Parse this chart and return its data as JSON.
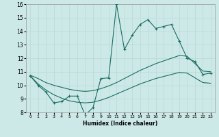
{
  "xlabel": "Humidex (Indice chaleur)",
  "xlim": [
    -0.5,
    23.5
  ],
  "ylim": [
    8,
    16
  ],
  "xticks": [
    0,
    1,
    2,
    3,
    4,
    5,
    6,
    7,
    8,
    9,
    10,
    11,
    12,
    13,
    14,
    15,
    16,
    17,
    18,
    19,
    20,
    21,
    22,
    23
  ],
  "yticks": [
    8,
    9,
    10,
    11,
    12,
    13,
    14,
    15,
    16
  ],
  "bg_color": "#cce9e7",
  "line_color": "#1a6b62",
  "grid_color": "#b8d8d5",
  "line1_x": [
    0,
    1,
    2,
    3,
    4,
    5,
    6,
    7,
    8,
    9,
    10,
    11,
    12,
    13,
    14,
    15,
    16,
    17,
    18,
    19,
    20,
    21,
    22,
    23
  ],
  "line1_y": [
    10.7,
    10.0,
    9.5,
    8.7,
    8.8,
    9.2,
    9.2,
    7.8,
    8.35,
    10.5,
    10.55,
    16.0,
    12.65,
    13.7,
    14.5,
    14.85,
    14.2,
    14.35,
    14.5,
    13.25,
    12.0,
    11.75,
    10.8,
    10.9
  ],
  "line2_x": [
    0,
    1,
    2,
    3,
    4,
    5,
    6,
    7,
    8,
    9,
    10,
    11,
    12,
    13,
    14,
    15,
    16,
    17,
    18,
    19,
    20,
    21,
    22,
    23
  ],
  "line2_y": [
    10.75,
    10.5,
    10.2,
    10.0,
    9.85,
    9.7,
    9.6,
    9.55,
    9.6,
    9.75,
    9.95,
    10.2,
    10.5,
    10.8,
    11.1,
    11.35,
    11.6,
    11.8,
    12.0,
    12.2,
    12.15,
    11.6,
    11.05,
    11.0
  ],
  "line3_x": [
    0,
    1,
    2,
    3,
    4,
    5,
    6,
    7,
    8,
    9,
    10,
    11,
    12,
    13,
    14,
    15,
    16,
    17,
    18,
    19,
    20,
    21,
    22,
    23
  ],
  "line3_y": [
    10.7,
    10.1,
    9.65,
    9.3,
    9.05,
    8.85,
    8.75,
    8.7,
    8.75,
    8.9,
    9.1,
    9.35,
    9.6,
    9.85,
    10.1,
    10.3,
    10.5,
    10.65,
    10.8,
    10.95,
    10.9,
    10.55,
    10.2,
    10.15
  ]
}
